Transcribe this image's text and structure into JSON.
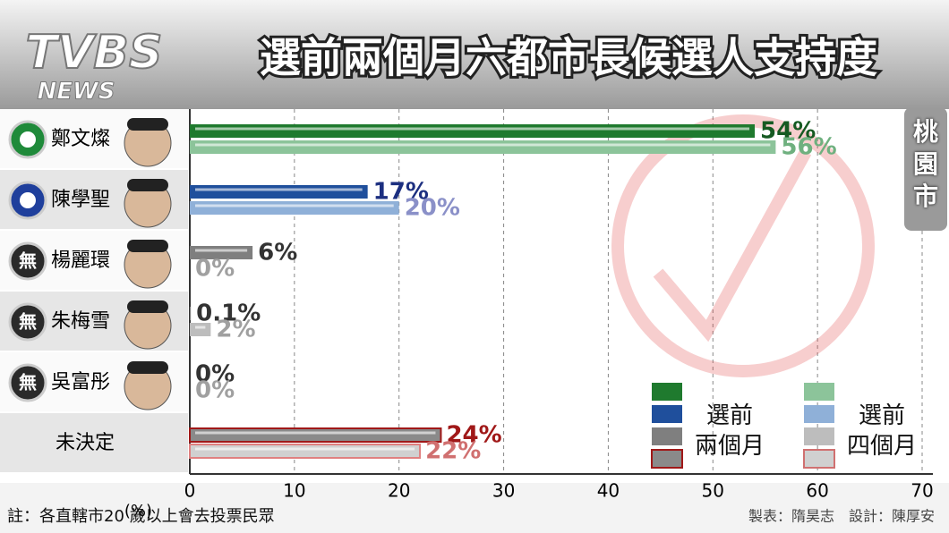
{
  "logo": {
    "brand": "TVBS",
    "sub": "NEWS"
  },
  "region": "桃園市",
  "note": "註：各直轄市20 歲以上會去投票民眾",
  "credits": "製表：隋昊志　設計：陳厚安",
  "chart_data": {
    "type": "bar",
    "orientation": "horizontal",
    "title": "選前兩個月六都市長候選人支持度",
    "x_label": "(%)",
    "categories": [
      "鄭文燦",
      "陳學聖",
      "楊麗環",
      "朱梅雪",
      "吳富彤",
      "未決定"
    ],
    "party_labels": [
      null,
      null,
      "無",
      "無",
      "無",
      null
    ],
    "series": [
      {
        "name": "選前\n兩個月",
        "colors": [
          "#1f7a2e",
          "#1f4f9c",
          "#7f7f7f",
          "#7f7f7f",
          "#7f7f7f",
          "#8a8a8a"
        ],
        "label_colors": [
          "#165a22",
          "#1c2f80",
          "#333333",
          "#333333",
          "#333333",
          "#a01818"
        ],
        "values": [
          54,
          17,
          6,
          0.1,
          0,
          24
        ],
        "value_labels": [
          "54%",
          "17%",
          "6%",
          "0.1%",
          "0%",
          "24%"
        ]
      },
      {
        "name": "選前\n四個月",
        "colors": [
          "#8cc49a",
          "#8fb0d8",
          "#bdbdbd",
          "#bdbdbd",
          "#bdbdbd",
          "#d0d0d0"
        ],
        "label_colors": [
          "#6fb07f",
          "#8a90c8",
          "#a0a0a0",
          "#a0a0a0",
          "#a0a0a0",
          "#d07070"
        ],
        "values": [
          56,
          20,
          0,
          2,
          0,
          22
        ],
        "value_labels": [
          "56%",
          "20%",
          "0%",
          "2%",
          "0%",
          "22%"
        ]
      }
    ],
    "xlim": [
      0,
      70
    ],
    "xticks": [
      0,
      10,
      20,
      30,
      40,
      50,
      60,
      70
    ],
    "grid": true
  }
}
